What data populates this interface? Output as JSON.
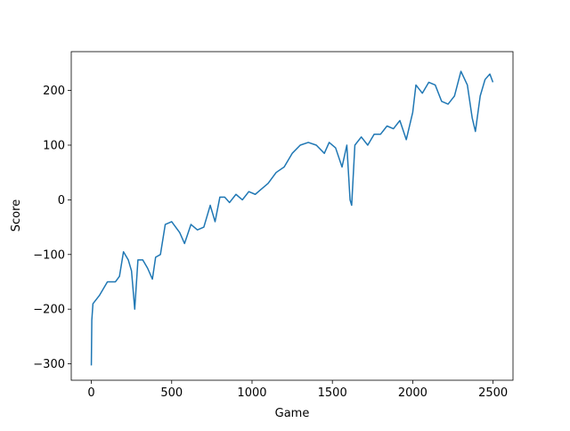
{
  "chart_data": {
    "type": "line",
    "xlabel": "Game",
    "ylabel": "Score",
    "x": [
      0,
      3,
      10,
      50,
      100,
      150,
      175,
      200,
      230,
      250,
      270,
      290,
      320,
      350,
      380,
      400,
      430,
      460,
      500,
      550,
      580,
      620,
      660,
      700,
      740,
      770,
      800,
      830,
      860,
      900,
      940,
      980,
      1020,
      1060,
      1100,
      1150,
      1200,
      1250,
      1300,
      1350,
      1400,
      1450,
      1480,
      1520,
      1560,
      1590,
      1610,
      1620,
      1640,
      1680,
      1720,
      1760,
      1800,
      1840,
      1880,
      1920,
      1960,
      2000,
      2020,
      2060,
      2100,
      2140,
      2180,
      2220,
      2260,
      2300,
      2340,
      2370,
      2390,
      2420,
      2450,
      2480,
      2499
    ],
    "series": [
      {
        "name": "Score",
        "color": "#1f77b4",
        "values": [
          -303,
          -220,
          -190,
          -175,
          -150,
          -150,
          -140,
          -95,
          -110,
          -130,
          -200,
          -110,
          -110,
          -125,
          -145,
          -105,
          -100,
          -45,
          -40,
          -60,
          -80,
          -45,
          -55,
          -50,
          -10,
          -40,
          5,
          5,
          -5,
          10,
          0,
          15,
          10,
          20,
          30,
          50,
          60,
          85,
          100,
          105,
          100,
          85,
          105,
          95,
          60,
          100,
          0,
          -10,
          100,
          115,
          100,
          120,
          120,
          135,
          130,
          145,
          110,
          160,
          210,
          195,
          215,
          210,
          180,
          175,
          190,
          235,
          210,
          150,
          125,
          190,
          220,
          230,
          215
        ]
      }
    ],
    "xlim": [
      -125,
      2624
    ],
    "ylim": [
      -330,
      271
    ],
    "xticks": [
      0,
      500,
      1000,
      1500,
      2000,
      2500
    ],
    "yticks": [
      {
        "value": -300,
        "label": "−300"
      },
      {
        "value": -200,
        "label": "−200"
      },
      {
        "value": -100,
        "label": "−100"
      },
      0,
      100,
      200
    ]
  }
}
